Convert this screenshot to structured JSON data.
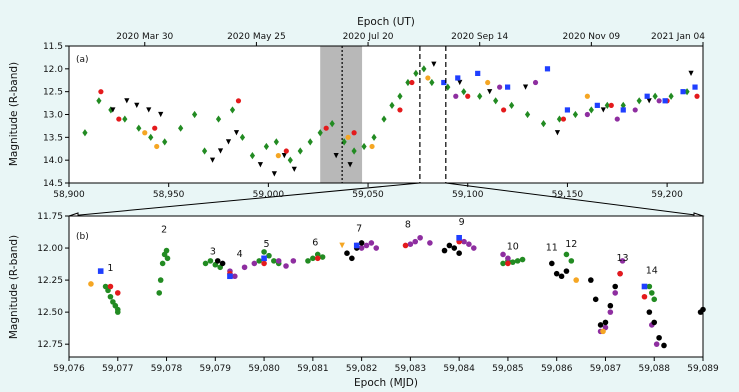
{
  "chart_data": [
    {
      "panel": "(a)",
      "type": "scatter",
      "top_xlabel": "Epoch (UT)",
      "top_ticks": [
        "2020 Mar 30",
        "2020 May 25",
        "2020 Jul 20",
        "2020 Sep 14",
        "2020 Nov 09",
        "2021 Jan 04"
      ],
      "top_tick_mjd": [
        58938,
        58994,
        59050,
        59106,
        59162,
        59218
      ],
      "ylabel": "Magnitude (R-band)",
      "xlim": [
        58900,
        59218
      ],
      "ylim": [
        14.5,
        11.5
      ],
      "y_inverted": true,
      "xticks": [
        58900,
        58950,
        59000,
        59050,
        59100,
        59150,
        59200
      ],
      "xtick_labels": [
        "58,900",
        "58,950",
        "59,000",
        "59,050",
        "59,100",
        "59,150",
        "59,200"
      ],
      "yticks": [
        11.5,
        12.0,
        12.5,
        13.0,
        13.5,
        14.0,
        14.5
      ],
      "ytick_labels": [
        "11.5",
        "12.0",
        "12.5",
        "13.0",
        "13.5",
        "14.0",
        "14.5"
      ],
      "shaded_band": [
        59026,
        59047
      ],
      "dotted_line": 59037,
      "dashed_lines": [
        59076,
        59089
      ],
      "series": [
        {
          "marker": "diamond",
          "color": "#228b22",
          "x": [
            58908,
            58915,
            58921,
            58928,
            58935,
            58941,
            58948,
            58956,
            58963,
            58968,
            58975,
            58982,
            58987,
            58992,
            58999,
            59004,
            59011,
            59016,
            59021,
            59026,
            59032,
            59038,
            59043,
            59048,
            59053,
            59058,
            59062,
            59066,
            59070,
            59074,
            59078,
            59082,
            59090,
            59098,
            59106,
            59114,
            59122,
            59130,
            59138,
            59146,
            59154,
            59162,
            59170,
            59178,
            59186,
            59194,
            59202,
            59210
          ],
          "y": [
            13.4,
            12.7,
            12.9,
            13.1,
            13.3,
            13.5,
            13.6,
            13.3,
            13.0,
            13.8,
            13.1,
            12.9,
            13.5,
            13.9,
            13.7,
            13.6,
            14.0,
            13.8,
            13.6,
            13.4,
            13.2,
            13.6,
            13.8,
            13.7,
            13.5,
            13.1,
            12.8,
            12.6,
            12.3,
            12.1,
            12.0,
            12.3,
            12.4,
            12.5,
            12.6,
            12.7,
            12.8,
            13.0,
            13.2,
            13.1,
            13.0,
            12.9,
            12.8,
            12.8,
            12.7,
            12.6,
            12.6,
            12.5
          ]
        },
        {
          "marker": "triangle-down",
          "color": "#000000",
          "x": [
            58922,
            58929,
            58934,
            58940,
            58946,
            58972,
            58976,
            58980,
            58984,
            58996,
            59003,
            59008,
            59013,
            59034,
            59041,
            59083,
            59096,
            59111,
            59129,
            59145,
            59168,
            59191,
            59212
          ],
          "y": [
            12.9,
            12.7,
            12.8,
            12.9,
            13.0,
            14.0,
            13.8,
            13.6,
            13.4,
            14.1,
            14.3,
            13.9,
            14.2,
            13.9,
            14.1,
            11.9,
            12.3,
            12.5,
            12.4,
            13.4,
            12.9,
            12.7,
            12.1
          ]
        },
        {
          "marker": "circle",
          "color": "#e41a1c",
          "x": [
            58916,
            58925,
            58943,
            58985,
            59009,
            59029,
            59043,
            59066,
            59072,
            59100,
            59118,
            59148,
            59172,
            59200,
            59215
          ],
          "y": [
            12.5,
            13.1,
            13.3,
            12.7,
            13.8,
            13.3,
            13.4,
            12.9,
            12.3,
            12.6,
            12.9,
            13.1,
            12.8,
            12.7,
            12.6
          ]
        },
        {
          "marker": "circle",
          "color": "#f5a623",
          "x": [
            58938,
            58944,
            59005,
            59040,
            59052,
            59080,
            59110,
            59160
          ],
          "y": [
            13.4,
            13.7,
            13.9,
            13.5,
            13.7,
            12.2,
            12.3,
            12.6
          ]
        },
        {
          "marker": "square",
          "color": "#1f3fff",
          "x": [
            59088,
            59095,
            59105,
            59120,
            59140,
            59150,
            59165,
            59178,
            59190,
            59199,
            59208,
            59214
          ],
          "y": [
            12.3,
            12.2,
            12.1,
            12.4,
            12.0,
            12.9,
            12.8,
            12.9,
            12.6,
            12.7,
            12.5,
            12.4
          ]
        },
        {
          "marker": "circle",
          "color": "#8e2ea0",
          "x": [
            59094,
            59116,
            59134,
            59160,
            59175,
            59184,
            59196
          ],
          "y": [
            12.6,
            12.4,
            12.3,
            13.0,
            13.1,
            12.9,
            12.7
          ]
        }
      ]
    },
    {
      "panel": "(b)",
      "type": "scatter",
      "xlabel": "Epoch (MJD)",
      "ylabel": "Magnitude (R-band)",
      "xlim": [
        59076,
        59089
      ],
      "ylim": [
        12.85,
        11.75
      ],
      "y_inverted": true,
      "xticks": [
        59076,
        59077,
        59078,
        59079,
        59080,
        59081,
        59082,
        59083,
        59084,
        59085,
        59086,
        59087,
        59088,
        59089
      ],
      "xtick_labels": [
        "59,076",
        "59,077",
        "59,078",
        "59,079",
        "59,080",
        "59,081",
        "59,082",
        "59,083",
        "59,084",
        "59,085",
        "59,086",
        "59,087",
        "59,088",
        "59,089"
      ],
      "yticks": [
        11.75,
        12.0,
        12.25,
        12.5,
        12.75
      ],
      "ytick_labels": [
        "11.75",
        "12.00",
        "12.25",
        "12.50",
        "12.75"
      ],
      "annotations": [
        {
          "text": "1",
          "x": 59076.85,
          "y": 12.18
        },
        {
          "text": "2",
          "x": 59077.95,
          "y": 11.88
        },
        {
          "text": "3",
          "x": 59078.95,
          "y": 12.05
        },
        {
          "text": "4",
          "x": 59079.5,
          "y": 12.07
        },
        {
          "text": "5",
          "x": 59080.05,
          "y": 11.99
        },
        {
          "text": "6",
          "x": 59081.05,
          "y": 11.98
        },
        {
          "text": "7",
          "x": 59081.95,
          "y": 11.87
        },
        {
          "text": "8",
          "x": 59082.95,
          "y": 11.84
        },
        {
          "text": "9",
          "x": 59084.05,
          "y": 11.82
        },
        {
          "text": "10",
          "x": 59085.1,
          "y": 12.01
        },
        {
          "text": "11",
          "x": 59085.9,
          "y": 12.02
        },
        {
          "text": "12",
          "x": 59086.3,
          "y": 11.99
        },
        {
          "text": "13",
          "x": 59087.35,
          "y": 12.1
        },
        {
          "text": "14",
          "x": 59087.95,
          "y": 12.2
        }
      ],
      "series": [
        {
          "marker": "circle",
          "color": "#228b22",
          "x": [
            59076.75,
            59076.8,
            59076.85,
            59076.9,
            59076.95,
            59077.0,
            59077.0,
            59077.85,
            59077.88,
            59077.92,
            59077.96,
            59078.0,
            59078.02,
            59078.8,
            59078.9,
            59079.0,
            59079.1,
            59079.9,
            59080.0,
            59080.1,
            59080.2,
            59080.3,
            59080.9,
            59081.0,
            59081.1,
            59081.2,
            59084.9,
            59085.0,
            59085.1,
            59085.2,
            59085.3,
            59086.2,
            59086.3,
            59087.9,
            59087.95,
            59088.0
          ],
          "y": [
            12.3,
            12.33,
            12.38,
            12.42,
            12.45,
            12.48,
            12.5,
            12.35,
            12.25,
            12.12,
            12.05,
            12.02,
            12.08,
            12.12,
            12.1,
            12.13,
            12.15,
            12.1,
            12.03,
            12.06,
            12.1,
            12.12,
            12.1,
            12.08,
            12.05,
            12.07,
            12.12,
            12.1,
            12.11,
            12.1,
            12.09,
            12.05,
            12.1,
            12.3,
            12.35,
            12.4
          ]
        },
        {
          "marker": "circle",
          "color": "#8e2ea0",
          "x": [
            59079.3,
            59079.4,
            59079.6,
            59079.8,
            59080.3,
            59080.45,
            59080.6,
            59082.0,
            59082.1,
            59082.2,
            59082.3,
            59083.0,
            59083.1,
            59083.2,
            59083.4,
            59084.1,
            59084.2,
            59084.3,
            59084.9,
            59085.0,
            59086.9,
            59087.0,
            59087.1,
            59087.2,
            59087.3,
            59087.35,
            59087.95,
            59088.05
          ],
          "y": [
            12.18,
            12.22,
            12.15,
            12.12,
            12.1,
            12.14,
            12.1,
            12.0,
            11.98,
            11.96,
            12.0,
            11.97,
            11.95,
            11.92,
            11.96,
            11.95,
            11.97,
            12.0,
            12.05,
            12.08,
            12.65,
            12.62,
            12.5,
            12.35,
            12.2,
            12.1,
            12.6,
            12.75
          ]
        },
        {
          "marker": "circle",
          "color": "#000000",
          "x": [
            59079.05,
            59079.15,
            59081.7,
            59081.8,
            59081.9,
            59082.0,
            59083.7,
            59083.8,
            59083.9,
            59084.0,
            59085.9,
            59086.0,
            59086.1,
            59086.2,
            59086.7,
            59086.8,
            59086.9,
            59087.0,
            59087.1,
            59087.2,
            59087.9,
            59088.0,
            59088.1,
            59088.2,
            59088.95,
            59089.0
          ],
          "y": [
            12.1,
            12.12,
            12.04,
            12.08,
            12.0,
            11.96,
            12.02,
            11.98,
            12.0,
            12.04,
            12.12,
            12.2,
            12.22,
            12.18,
            12.25,
            12.4,
            12.6,
            12.58,
            12.45,
            12.3,
            12.5,
            12.58,
            12.7,
            12.76,
            12.5,
            12.48
          ]
        },
        {
          "marker": "circle",
          "color": "#e41a1c",
          "x": [
            59076.85,
            59077.0,
            59079.3,
            59080.0,
            59081.1,
            59081.9,
            59082.9,
            59084.0,
            59085.0,
            59087.3,
            59087.8
          ],
          "y": [
            12.3,
            12.35,
            12.2,
            12.12,
            12.08,
            11.98,
            11.98,
            11.95,
            12.12,
            12.2,
            12.38
          ]
        },
        {
          "marker": "square",
          "color": "#1f3fff",
          "x": [
            59076.65,
            59079.3,
            59080.0,
            59081.9,
            59084.0,
            59087.8
          ],
          "y": [
            12.18,
            12.22,
            12.08,
            11.98,
            11.92,
            12.3
          ]
        },
        {
          "marker": "triangle-down",
          "color": "#f5a623",
          "x": [
            59081.6
          ],
          "y": [
            11.98
          ]
        },
        {
          "marker": "circle",
          "color": "#f5a623",
          "x": [
            59076.45,
            59086.4,
            59086.95
          ],
          "y": [
            12.28,
            12.25,
            12.65
          ]
        }
      ]
    }
  ]
}
